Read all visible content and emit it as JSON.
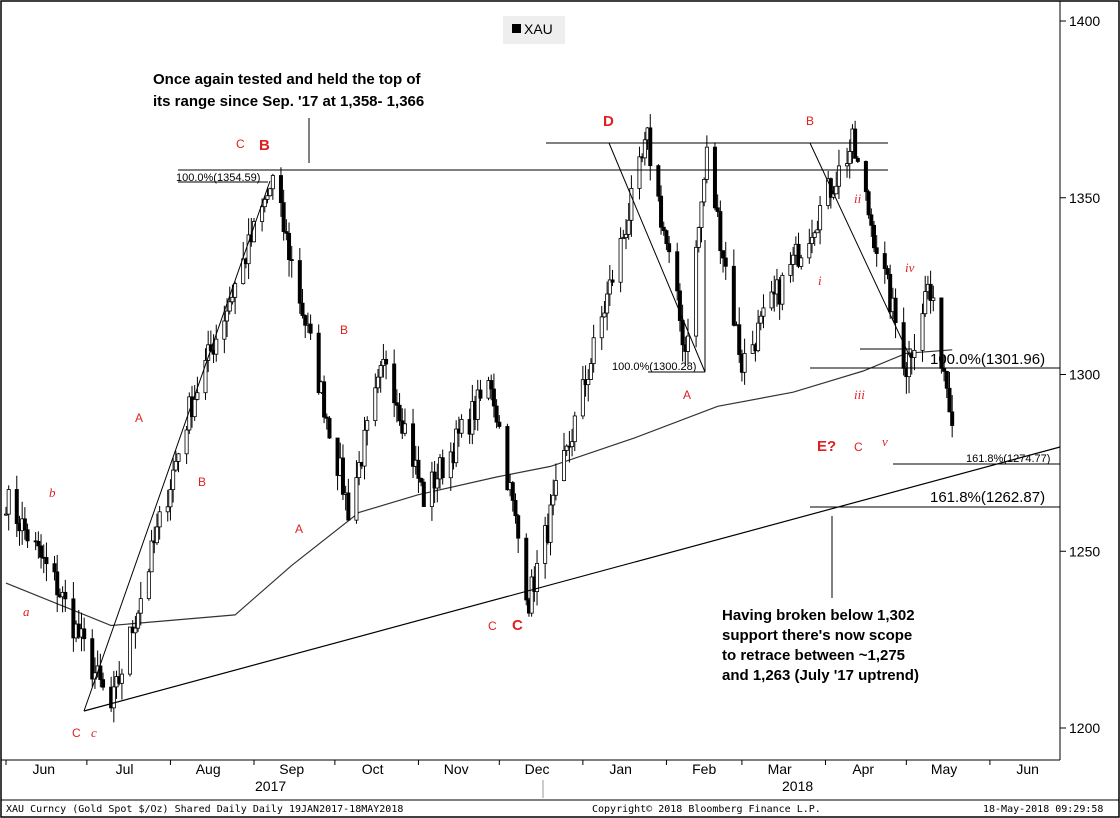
{
  "legend": {
    "label": "XAU"
  },
  "annotations": {
    "top_text": [
      "Once again tested and held the top of",
      "its range since Sep. '17 at 1,358- 1,366"
    ],
    "bottom_text": [
      "Having broken below 1,302",
      "support there's now scope",
      "to  retrace  between ~1,275",
      "and 1,263 (July '17 uptrend)"
    ]
  },
  "fib_labels": {
    "sep_high": "100.0%(1354.59)",
    "feb_low": "100.0%(1300.28)",
    "apr_level": "100.0%(1301.96)",
    "ext_1": "161.8%(1274.77)",
    "ext_2": "161.8%(1262.87)"
  },
  "wave_labels": [
    {
      "text": "a",
      "style": "italic"
    },
    {
      "text": "b",
      "style": "italic"
    },
    {
      "text": "c",
      "style": "italic"
    },
    {
      "text": "C",
      "style": "normal"
    },
    {
      "text": "A",
      "style": "normal"
    },
    {
      "text": "B",
      "style": "normal"
    },
    {
      "text": "C",
      "style": "normal"
    },
    {
      "text": "B",
      "style": "bold"
    },
    {
      "text": "A",
      "style": "normal"
    },
    {
      "text": "B",
      "style": "normal"
    },
    {
      "text": "C",
      "style": "normal"
    },
    {
      "text": "C",
      "style": "bold"
    },
    {
      "text": "D",
      "style": "bold"
    },
    {
      "text": "A",
      "style": "normal"
    },
    {
      "text": "B",
      "style": "normal"
    },
    {
      "text": "i",
      "style": "italic"
    },
    {
      "text": "ii",
      "style": "italic"
    },
    {
      "text": "iii",
      "style": "italic"
    },
    {
      "text": "iv",
      "style": "italic"
    },
    {
      "text": "v",
      "style": "italic"
    },
    {
      "text": "C",
      "style": "normal"
    },
    {
      "text": "E?",
      "style": "bold"
    }
  ],
  "footer": {
    "left": "XAU Curncy (Gold Spot  $/Oz) Shared Daily  Daily 19JAN2017-18MAY2018",
    "center": "Copyright© 2018 Bloomberg Finance L.P.",
    "right": "18-May-2018 09:29:58"
  },
  "colors": {
    "candle": "#000000",
    "wave": "#e02020",
    "ma": "#333333",
    "line": "#000000"
  },
  "chart_data": {
    "type": "candlestick",
    "y_ticks": [
      1200,
      1250,
      1300,
      1350,
      1400
    ],
    "ylim": [
      1194,
      1403
    ],
    "x_months": [
      "Jun",
      "Jul",
      "Aug",
      "Sep",
      "Oct",
      "Nov",
      "Dec",
      "Jan",
      "Feb",
      "Mar",
      "Apr",
      "May",
      "Jun"
    ],
    "year_labels": [
      "2017",
      "2018"
    ],
    "series": [
      {
        "name": "XAU",
        "values_description_free": true,
        "key_points": [
          {
            "date": "2017-06-01",
            "close": 1265
          },
          {
            "date": "2017-06-20",
            "close": 1240
          },
          {
            "date": "2017-07-10",
            "close": 1205
          },
          {
            "date": "2017-08-08",
            "close": 1290
          },
          {
            "date": "2017-09-08",
            "close": 1354.59
          },
          {
            "date": "2017-10-06",
            "close": 1262
          },
          {
            "date": "2017-10-20",
            "close": 1305
          },
          {
            "date": "2017-11-03",
            "close": 1265
          },
          {
            "date": "2017-11-28",
            "close": 1298
          },
          {
            "date": "2017-12-12",
            "close": 1236
          },
          {
            "date": "2018-01-25",
            "close": 1366
          },
          {
            "date": "2018-02-08",
            "close": 1307
          },
          {
            "date": "2018-02-16",
            "close": 1362
          },
          {
            "date": "2018-03-01",
            "close": 1303
          },
          {
            "date": "2018-04-11",
            "close": 1365
          },
          {
            "date": "2018-05-01",
            "close": 1302
          },
          {
            "date": "2018-05-09",
            "close": 1325
          },
          {
            "date": "2018-05-18",
            "close": 1290
          }
        ]
      }
    ],
    "levels": [
      {
        "value": 1366,
        "label": "range top"
      },
      {
        "value": 1358,
        "label": "range top"
      },
      {
        "value": 1301.96
      },
      {
        "value": 1274.77
      },
      {
        "value": 1262.87
      }
    ]
  }
}
